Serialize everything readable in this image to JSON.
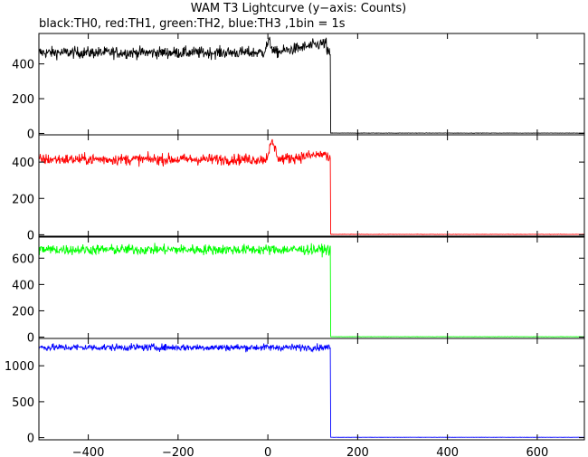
{
  "chart_data": {
    "type": "line",
    "title": "WAM T3 Lightcurve (y−axis: Counts)",
    "subtitle": "black:TH0, red:TH1, green:TH2, blue:TH3 ,1bin = 1s",
    "xlabel": "",
    "xlim": [
      -510,
      705
    ],
    "x_ticks": [
      -400,
      -200,
      0,
      200,
      400,
      600
    ],
    "x_tick_labels": [
      "−400",
      "−200",
      "0",
      "200",
      "400",
      "600"
    ],
    "step_drop_x": 140,
    "grid": false,
    "panels": [
      {
        "name": "TH0",
        "color": "#000000",
        "ylim": [
          -8,
          575
        ],
        "y_ticks": [
          0,
          200,
          400
        ],
        "y_tick_labels": [
          "0",
          "200",
          "400"
        ],
        "level_before": 465,
        "noise": 24,
        "level_after": 2,
        "features": [
          {
            "x": [
              -10,
              15
            ],
            "peak": 530
          },
          {
            "x": [
              15,
              130
            ],
            "rise_to": 520
          }
        ]
      },
      {
        "name": "TH1",
        "color": "#ff0000",
        "ylim": [
          -8,
          550
        ],
        "y_ticks": [
          0,
          200,
          400
        ],
        "y_tick_labels": [
          "0",
          "200",
          "400"
        ],
        "level_before": 415,
        "noise": 22,
        "level_after": 2,
        "features": [
          {
            "x": [
              -5,
              25
            ],
            "peak": 510
          },
          {
            "x": [
              25,
              130
            ],
            "rise_to": 445
          }
        ]
      },
      {
        "name": "TH2",
        "color": "#00ff00",
        "ylim": [
          -10,
          760
        ],
        "y_ticks": [
          0,
          200,
          400,
          600
        ],
        "y_tick_labels": [
          "0",
          "200",
          "400",
          "600"
        ],
        "level_before": 665,
        "noise": 28,
        "level_after": 3,
        "features": []
      },
      {
        "name": "TH3",
        "color": "#0000ff",
        "ylim": [
          -30,
          1380
        ],
        "y_ticks": [
          0,
          500,
          1000
        ],
        "y_tick_labels": [
          "0",
          "500",
          "1000"
        ],
        "level_before": 1255,
        "noise": 35,
        "level_after": 5,
        "features": []
      }
    ]
  }
}
